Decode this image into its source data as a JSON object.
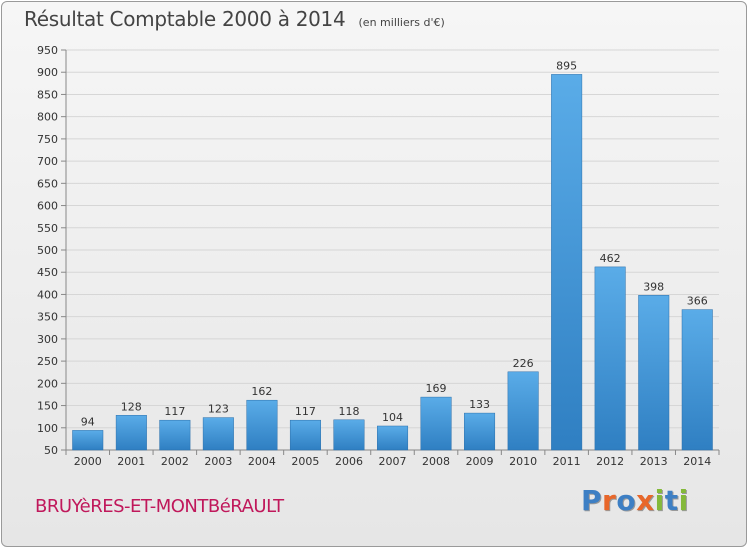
{
  "header": {
    "title": "Résultat Comptable 2000 à 2014",
    "subtitle": "(en milliers d'€)"
  },
  "footer": {
    "commune": "BRUYèRES-ET-MONTBéRAULT",
    "logo_text": "Proxiti"
  },
  "colors": {
    "bar_fill_light": "#5aace8",
    "bar_fill_dark": "#2f7fc2",
    "commune_text": "#c0185b",
    "logo_letters": [
      "#3d7fc4",
      "#e8672a",
      "#3d7fc4",
      "#e8672a",
      "#84b93a",
      "#3d7fc4",
      "#84b93a"
    ]
  },
  "chart_data": {
    "type": "bar",
    "title": "Résultat Comptable 2000 à 2014",
    "subtitle": "(en milliers d'€)",
    "categories": [
      "2000",
      "2001",
      "2002",
      "2003",
      "2004",
      "2005",
      "2006",
      "2007",
      "2008",
      "2009",
      "2010",
      "2011",
      "2012",
      "2013",
      "2014"
    ],
    "values": [
      94,
      128,
      117,
      123,
      162,
      117,
      118,
      104,
      169,
      133,
      226,
      895,
      462,
      398,
      366
    ],
    "ylim": [
      50,
      950
    ],
    "yticks": [
      50,
      100,
      150,
      200,
      250,
      300,
      350,
      400,
      450,
      500,
      550,
      600,
      650,
      700,
      750,
      800,
      850,
      900,
      950
    ],
    "grid": true,
    "xlabel": "",
    "ylabel": ""
  }
}
